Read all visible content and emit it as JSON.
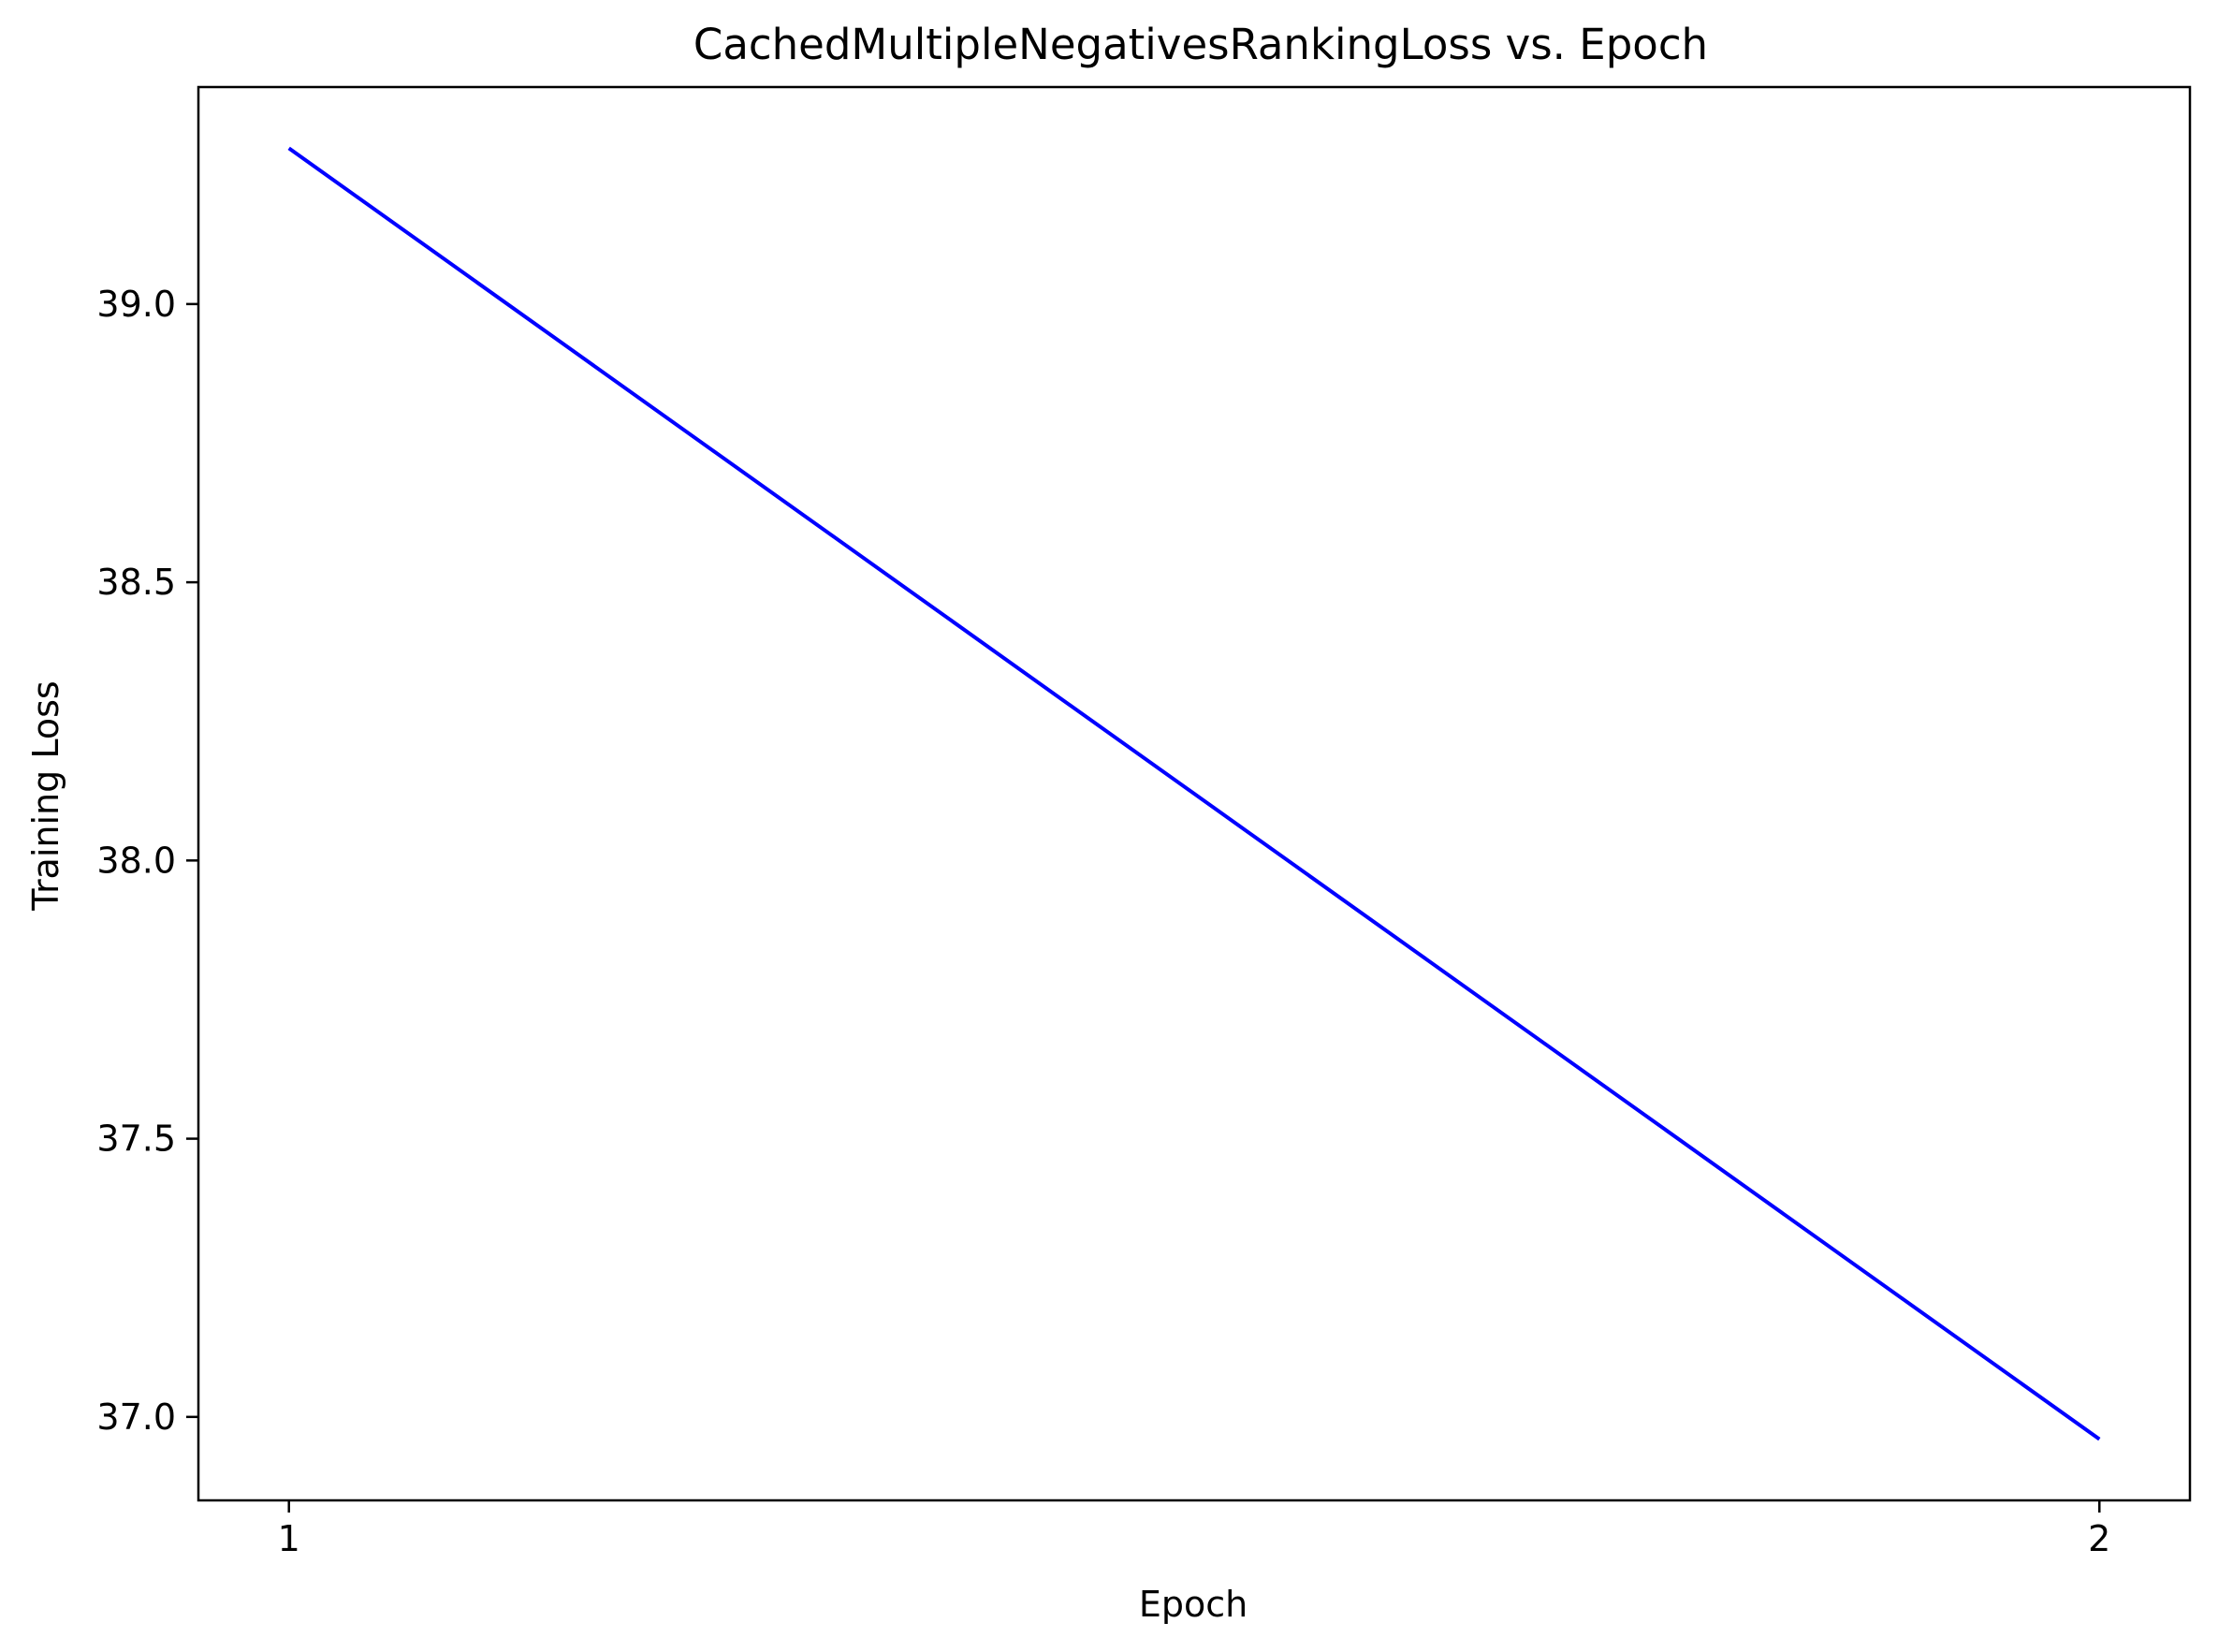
{
  "chart_data": {
    "type": "line",
    "title": "CachedMultipleNegativesRankingLoss  vs. Epoch",
    "xlabel": "Epoch",
    "ylabel": "Training Loss",
    "x": [
      1,
      2
    ],
    "series": [
      {
        "values": [
          39.28,
          36.96
        ]
      }
    ],
    "xlim": [
      0.95,
      2.05
    ],
    "ylim": [
      36.85,
      39.39
    ],
    "xticks": [
      1,
      2
    ],
    "xtick_labels": [
      "1",
      "2"
    ],
    "yticks": [
      37.0,
      37.5,
      38.0,
      38.5,
      39.0
    ],
    "ytick_labels": [
      "37.0",
      "37.5",
      "38.0",
      "38.5",
      "39.0"
    ],
    "grid": false,
    "legend": "none",
    "line_color": "#0000ff"
  }
}
